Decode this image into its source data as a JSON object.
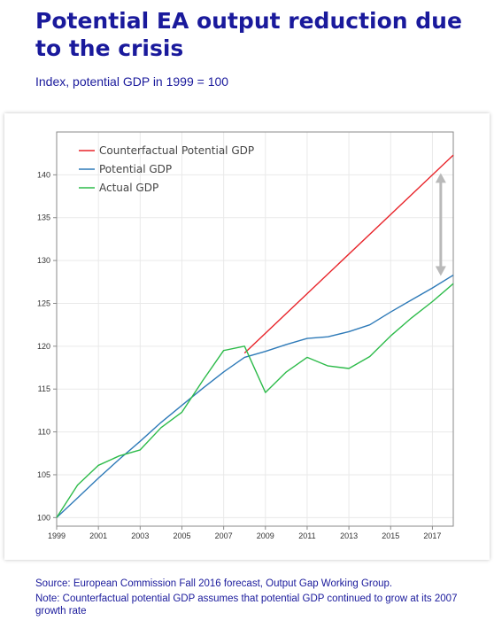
{
  "page": {
    "title": "Potential EA output reduction due to the crisis",
    "subtitle": "Index, potential GDP in 1999 = 100",
    "source": "Source: European Commission Fall 2016 forecast, Output Gap Working Group.",
    "note": "Note: Counterfactual potential GDP assumes that potential GDP continued to grow at its 2007 growth rate"
  },
  "chart_data": {
    "type": "line",
    "title": "",
    "xlabel": "",
    "ylabel": "",
    "xlim": [
      1999,
      2018
    ],
    "ylim": [
      99,
      145
    ],
    "xticks": [
      1999,
      2001,
      2003,
      2005,
      2007,
      2009,
      2011,
      2013,
      2015,
      2017
    ],
    "yticks": [
      100,
      105,
      110,
      115,
      120,
      125,
      130,
      135,
      140
    ],
    "grid": true,
    "legend_position": "top-left",
    "series": [
      {
        "name": "Counterfactual Potential GDP",
        "color": "#e8242a",
        "x": [
          2008,
          2018
        ],
        "y": [
          119.2,
          142.3
        ]
      },
      {
        "name": "Potential GDP",
        "color": "#2e7ab8",
        "x": [
          1999,
          2000,
          2001,
          2002,
          2003,
          2004,
          2005,
          2006,
          2007,
          2008,
          2009,
          2010,
          2011,
          2012,
          2013,
          2014,
          2015,
          2016,
          2017,
          2018
        ],
        "y": [
          100,
          102.3,
          104.6,
          106.8,
          108.9,
          111.1,
          113.1,
          115.1,
          117.0,
          118.7,
          119.4,
          120.2,
          120.9,
          121.1,
          121.7,
          122.5,
          124.0,
          125.4,
          126.8,
          128.3
        ]
      },
      {
        "name": "Actual GDP",
        "color": "#2dbb4a",
        "x": [
          1999,
          2000,
          2001,
          2002,
          2003,
          2004,
          2005,
          2006,
          2007,
          2008,
          2009,
          2010,
          2011,
          2012,
          2013,
          2014,
          2015,
          2016,
          2017,
          2018
        ],
        "y": [
          100,
          103.8,
          106.1,
          107.2,
          107.9,
          110.5,
          112.3,
          116.0,
          119.5,
          120.0,
          114.6,
          117.0,
          118.7,
          117.7,
          117.4,
          118.8,
          121.2,
          123.3,
          125.2,
          127.3
        ]
      }
    ],
    "annotation": {
      "type": "double-arrow",
      "color": "#b9b9b9",
      "x": 2017.4,
      "y_top": 140.2,
      "y_bottom": 128.2
    }
  }
}
